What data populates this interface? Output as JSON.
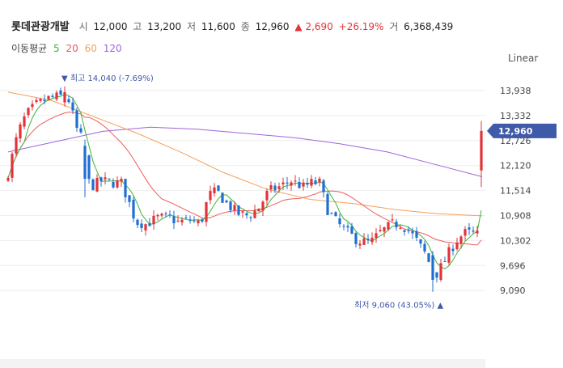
{
  "header": {
    "name": "롯데관광개발",
    "open_label": "시",
    "open": "12,000",
    "high_label": "고",
    "high": "13,200",
    "low_label": "저",
    "low": "11,600",
    "close_label": "종",
    "close": "12,960",
    "change": "▲ 2,690",
    "change_pct": "+26.19%",
    "volume_label": "거",
    "volume": "6,368,439"
  },
  "ma_legend": {
    "label": "이동평균",
    "periods": [
      "5",
      "20",
      "60",
      "120"
    ],
    "colors": [
      "#3cb43c",
      "#f05a5a",
      "#f5a05a",
      "#a064dc"
    ]
  },
  "scale_button": "Linear",
  "colors": {
    "up": "#e0343a",
    "down": "#1f6fd1",
    "badge": "#3f5aa8"
  },
  "chart_data": {
    "type": "candlestick",
    "y_ticks": [
      "13,938",
      "13,332",
      "12,726",
      "12,120",
      "11,514",
      "10,908",
      "10,302",
      "9,696",
      "9,090"
    ],
    "ylim": [
      8700,
      14600
    ],
    "last_price_label": "12,960",
    "annotations": {
      "high": {
        "marker": "▼",
        "text": "최고 14,040 (-7.69%)",
        "value": 14040
      },
      "low": {
        "marker": "▲",
        "text": "최저 9,060 (43.05%)",
        "value": 9060
      }
    },
    "ma_anchor_prices": {
      "ma60": [
        13900,
        13700,
        13300,
        12900,
        12450,
        11950,
        11550,
        11300,
        11200,
        11050,
        10950,
        10900
      ],
      "ma120": [
        12450,
        12700,
        12950,
        13050,
        13000,
        12900,
        12800,
        12650,
        12450,
        12150,
        11850
      ]
    }
  }
}
